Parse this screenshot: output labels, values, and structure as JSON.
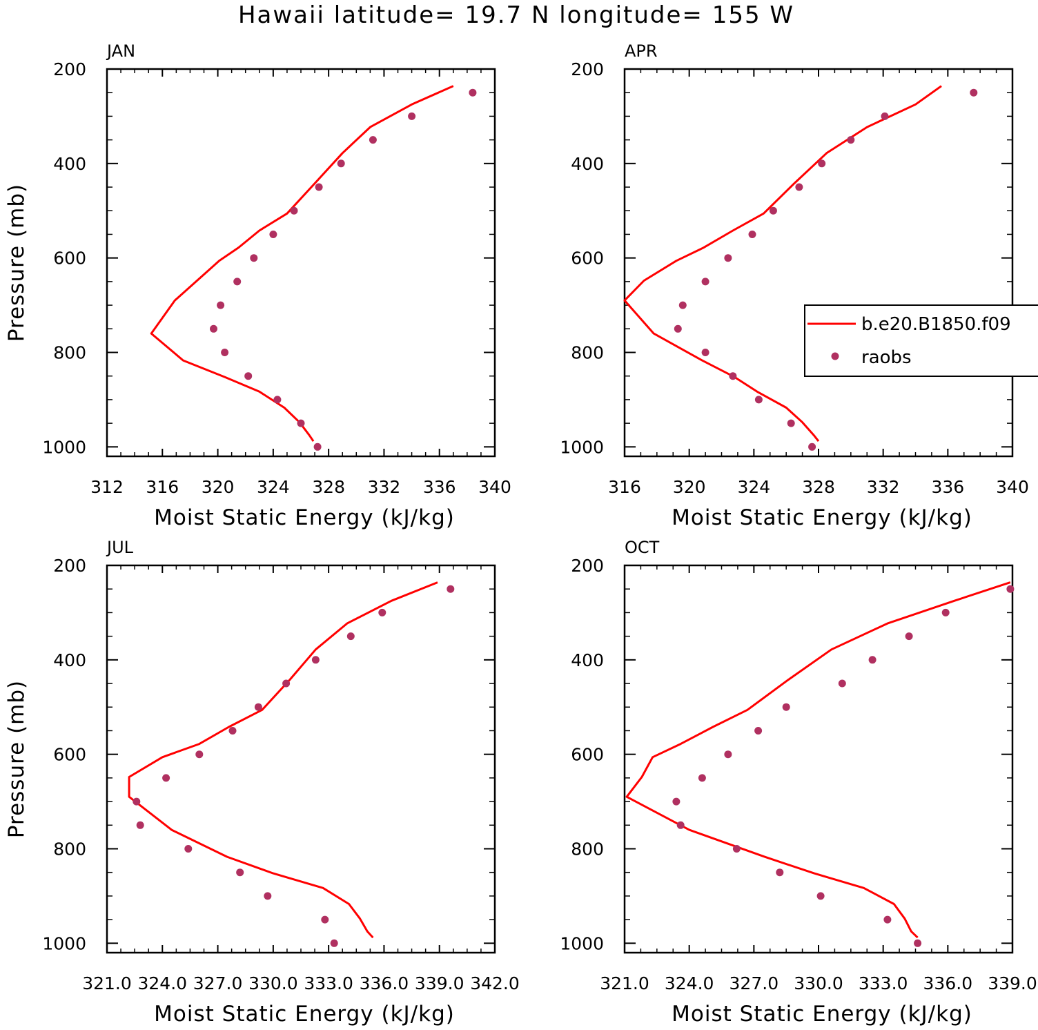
{
  "title": "Hawaii  latitude= 19.7 N longitude= 155 W",
  "colors": {
    "model": "#ff0000",
    "obs": "#b03060",
    "axes": "#000000"
  },
  "legend": {
    "placement": "right",
    "model_label": "b.e20.B1850.f09",
    "obs_label": "raobs"
  },
  "chart_data": [
    {
      "type": "line",
      "panel": "JAN",
      "xlabel": "Moist Static Energy (kJ/kg)",
      "ylabel": "Pressure (mb)",
      "xlim": [
        312,
        340
      ],
      "ylim": [
        1020,
        200
      ],
      "xticks": [
        312,
        316,
        320,
        324,
        328,
        332,
        336,
        340
      ],
      "xtick_labels": [
        "312",
        "316",
        "320",
        "324",
        "328",
        "332",
        "336",
        "340"
      ],
      "yticks": [
        200,
        400,
        600,
        800,
        1000
      ],
      "ytick_labels": [
        "200",
        "400",
        "600",
        "800",
        "1000"
      ],
      "series": [
        {
          "name": "b.e20.B1850.f09",
          "style": "line",
          "x": [
            337.0,
            334.0,
            331.0,
            329.0,
            327.0,
            325.0,
            323.0,
            321.5,
            320.1,
            318.5,
            316.9,
            315.2,
            317.5,
            320.5,
            323.0,
            324.8,
            325.9,
            326.6,
            326.9
          ],
          "y": [
            236,
            275,
            323,
            378,
            442,
            506,
            542,
            578,
            606,
            648,
            690,
            760,
            817,
            852,
            883,
            917,
            948,
            975,
            988
          ]
        },
        {
          "name": "raobs",
          "style": "markers",
          "x": [
            338.4,
            334.0,
            331.2,
            328.9,
            327.3,
            325.5,
            324.0,
            322.6,
            321.4,
            320.2,
            319.7,
            320.5,
            322.2,
            324.3,
            326.0,
            327.2
          ],
          "y": [
            250,
            300,
            350,
            400,
            450,
            500,
            550,
            600,
            650,
            700,
            750,
            800,
            850,
            900,
            950,
            1000
          ]
        }
      ]
    },
    {
      "type": "line",
      "panel": "APR",
      "xlabel": "Moist Static Energy (kJ/kg)",
      "ylabel": "",
      "xlim": [
        316,
        340
      ],
      "ylim": [
        1020,
        200
      ],
      "xticks": [
        316,
        320,
        324,
        328,
        332,
        336,
        340
      ],
      "xtick_labels": [
        "316",
        "320",
        "324",
        "328",
        "332",
        "336",
        "340"
      ],
      "yticks": [
        200,
        400,
        600,
        800,
        1000
      ],
      "ytick_labels": [
        "200",
        "400",
        "600",
        "800",
        "1000"
      ],
      "series": [
        {
          "name": "b.e20.B1850.f09",
          "style": "line",
          "x": [
            335.6,
            334.0,
            331.0,
            328.5,
            326.5,
            324.6,
            322.7,
            320.9,
            319.2,
            317.2,
            316.0,
            317.8,
            320.8,
            322.8,
            324.2,
            326.0,
            327.0,
            327.7,
            328.0
          ],
          "y": [
            236,
            275,
            323,
            378,
            442,
            506,
            542,
            578,
            606,
            648,
            690,
            760,
            817,
            852,
            883,
            917,
            948,
            975,
            988
          ]
        },
        {
          "name": "raobs",
          "style": "markers",
          "x": [
            337.6,
            332.1,
            330.0,
            328.2,
            326.8,
            325.2,
            323.9,
            322.4,
            321.0,
            319.6,
            319.3,
            321.0,
            322.7,
            324.3,
            326.3,
            327.6
          ],
          "y": [
            250,
            300,
            350,
            400,
            450,
            500,
            550,
            600,
            650,
            700,
            750,
            800,
            850,
            900,
            950,
            1000
          ]
        }
      ]
    },
    {
      "type": "line",
      "panel": "JUL",
      "xlabel": "Moist Static Energy (kJ/kg)",
      "ylabel": "Pressure (mb)",
      "xlim": [
        321.0,
        342.0
      ],
      "ylim": [
        1020,
        200
      ],
      "xticks": [
        321.0,
        324.0,
        327.0,
        330.0,
        333.0,
        336.0,
        339.0,
        342.0
      ],
      "xtick_labels": [
        "321.0",
        "324.0",
        "327.0",
        "330.0",
        "333.0",
        "336.0",
        "339.0",
        "342.0"
      ],
      "yticks": [
        200,
        400,
        600,
        800,
        1000
      ],
      "ytick_labels": [
        "200",
        "400",
        "600",
        "800",
        "1000"
      ],
      "series": [
        {
          "name": "b.e20.B1850.f09",
          "style": "line",
          "x": [
            338.9,
            336.4,
            334.0,
            332.3,
            330.9,
            329.4,
            327.6,
            326.0,
            324.0,
            322.2,
            322.2,
            324.5,
            327.5,
            330.0,
            332.7,
            334.1,
            334.7,
            335.1,
            335.4
          ],
          "y": [
            236,
            275,
            323,
            378,
            442,
            506,
            542,
            578,
            606,
            648,
            690,
            760,
            817,
            852,
            883,
            917,
            948,
            975,
            988
          ]
        },
        {
          "name": "raobs",
          "style": "markers",
          "x": [
            339.6,
            335.9,
            334.2,
            332.3,
            330.7,
            329.2,
            327.8,
            326.0,
            324.2,
            322.6,
            322.8,
            325.4,
            328.2,
            329.7,
            332.8,
            333.3
          ],
          "y": [
            250,
            300,
            350,
            400,
            450,
            500,
            550,
            600,
            650,
            700,
            750,
            800,
            850,
            900,
            950,
            1000
          ]
        }
      ]
    },
    {
      "type": "line",
      "panel": "OCT",
      "xlabel": "Moist Static Energy (kJ/kg)",
      "ylabel": "",
      "xlim": [
        321.0,
        339.0
      ],
      "ylim": [
        1020,
        200
      ],
      "xticks": [
        321.0,
        324.0,
        327.0,
        330.0,
        333.0,
        336.0,
        339.0
      ],
      "xtick_labels": [
        "321.0",
        "324.0",
        "327.0",
        "330.0",
        "333.0",
        "336.0",
        "339.0"
      ],
      "yticks": [
        200,
        400,
        600,
        800,
        1000
      ],
      "ytick_labels": [
        "200",
        "400",
        "600",
        "800",
        "1000"
      ],
      "series": [
        {
          "name": "b.e20.B1850.f09",
          "style": "line",
          "x": [
            338.9,
            336.3,
            333.2,
            330.6,
            328.6,
            326.7,
            325.1,
            323.6,
            322.3,
            321.8,
            321.1,
            324.0,
            327.5,
            329.8,
            332.1,
            333.5,
            334.0,
            334.3,
            334.6
          ],
          "y": [
            236,
            275,
            323,
            378,
            442,
            506,
            542,
            578,
            606,
            648,
            690,
            760,
            817,
            852,
            883,
            917,
            948,
            975,
            988
          ]
        },
        {
          "name": "raobs",
          "style": "markers",
          "x": [
            338.9,
            335.9,
            334.2,
            332.5,
            331.1,
            328.5,
            327.2,
            325.8,
            324.6,
            323.4,
            323.6,
            326.2,
            328.2,
            330.1,
            333.2,
            334.6
          ],
          "y": [
            250,
            300,
            350,
            400,
            450,
            500,
            550,
            600,
            650,
            700,
            750,
            800,
            850,
            900,
            950,
            1000
          ]
        }
      ]
    }
  ]
}
